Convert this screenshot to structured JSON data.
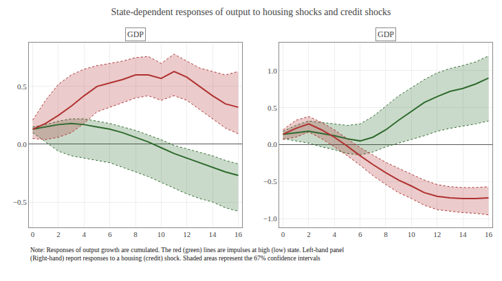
{
  "title": "State-dependent responses of output to housing shocks and credit shocks",
  "annotations": [
    "Note: Responses of output growth are cumulated. The red (green) lines are impulses at high (low) state. Left-hand panel\n(Right-hand) report responses to a housing (credit) shock. Shaded areas represent the 67% confidence intervals"
  ],
  "chart_data": [
    {
      "type": "line",
      "title": "GDP",
      "x": [
        0,
        1,
        2,
        3,
        4,
        5,
        6,
        7,
        8,
        9,
        10,
        11,
        12,
        13,
        14,
        15,
        16
      ],
      "series": [
        {
          "color": "#2d6a2d",
          "values": [
            0.13,
            0.15,
            0.17,
            0.18,
            0.17,
            0.15,
            0.13,
            0.1,
            0.06,
            0.02,
            -0.03,
            -0.08,
            -0.12,
            -0.16,
            -0.2,
            -0.24,
            -0.27
          ],
          "upper": [
            0.15,
            0.17,
            0.2,
            0.22,
            0.22,
            0.2,
            0.18,
            0.15,
            0.12,
            0.08,
            0.04,
            -0.01,
            -0.04,
            -0.07,
            -0.1,
            -0.14,
            -0.17
          ],
          "lower": [
            0.1,
            0.02,
            -0.06,
            -0.1,
            -0.12,
            -0.14,
            -0.16,
            -0.2,
            -0.24,
            -0.28,
            -0.33,
            -0.38,
            -0.43,
            -0.47,
            -0.5,
            -0.55,
            -0.58
          ]
        },
        {
          "color": "#b03030",
          "values": [
            0.13,
            0.18,
            0.25,
            0.33,
            0.42,
            0.5,
            0.53,
            0.56,
            0.6,
            0.6,
            0.57,
            0.63,
            0.58,
            0.5,
            0.42,
            0.35,
            0.32
          ],
          "upper": [
            0.21,
            0.38,
            0.52,
            0.6,
            0.65,
            0.68,
            0.7,
            0.72,
            0.75,
            0.76,
            0.7,
            0.78,
            0.72,
            0.66,
            0.63,
            0.6,
            0.63
          ],
          "lower": [
            0.05,
            0.04,
            0.06,
            0.1,
            0.18,
            0.28,
            0.32,
            0.36,
            0.4,
            0.42,
            0.38,
            0.42,
            0.38,
            0.3,
            0.22,
            0.14,
            0.09
          ]
        }
      ],
      "xlim": [
        -0.3,
        16.3
      ],
      "xticks": [
        0,
        2,
        4,
        6,
        8,
        10,
        12,
        14,
        16
      ],
      "ylim": [
        -0.72,
        0.88
      ],
      "yticks": [
        {
          "value": -0.5,
          "label": "−0.5"
        },
        {
          "value": 0.0,
          "label": "0.0"
        },
        0.5
      ],
      "grid": true
    },
    {
      "type": "line",
      "title": "GDP",
      "x": [
        0,
        1,
        2,
        3,
        4,
        5,
        6,
        7,
        8,
        9,
        10,
        11,
        12,
        13,
        14,
        15,
        16
      ],
      "series": [
        {
          "color": "#2d6a2d",
          "values": [
            0.14,
            0.16,
            0.18,
            0.15,
            0.12,
            0.08,
            0.05,
            0.1,
            0.2,
            0.33,
            0.45,
            0.57,
            0.65,
            0.72,
            0.76,
            0.82,
            0.9
          ],
          "upper": [
            0.18,
            0.26,
            0.32,
            0.3,
            0.28,
            0.26,
            0.28,
            0.38,
            0.52,
            0.66,
            0.77,
            0.88,
            0.97,
            1.03,
            1.07,
            1.12,
            1.2
          ],
          "lower": [
            0.08,
            0.05,
            0.02,
            -0.03,
            -0.07,
            -0.12,
            -0.14,
            -0.1,
            -0.03,
            0.02,
            0.07,
            0.12,
            0.18,
            0.22,
            0.25,
            0.28,
            0.32
          ]
        },
        {
          "color": "#b03030",
          "values": [
            0.14,
            0.22,
            0.28,
            0.2,
            0.1,
            -0.02,
            -0.15,
            -0.27,
            -0.38,
            -0.48,
            -0.56,
            -0.65,
            -0.7,
            -0.72,
            -0.73,
            -0.73,
            -0.72
          ],
          "upper": [
            0.2,
            0.33,
            0.38,
            0.3,
            0.2,
            0.08,
            -0.04,
            -0.14,
            -0.24,
            -0.32,
            -0.4,
            -0.48,
            -0.54,
            -0.57,
            -0.58,
            -0.58,
            -0.57
          ],
          "lower": [
            0.07,
            0.1,
            0.17,
            0.08,
            -0.03,
            -0.15,
            -0.28,
            -0.42,
            -0.54,
            -0.65,
            -0.73,
            -0.82,
            -0.88,
            -0.9,
            -0.92,
            -0.93,
            -0.95
          ]
        }
      ],
      "xlim": [
        -0.3,
        16.3
      ],
      "xticks": [
        0,
        2,
        4,
        6,
        8,
        10,
        12,
        14,
        16
      ],
      "ylim": [
        -1.12,
        1.38
      ],
      "yticks": [
        {
          "value": -1.0,
          "label": "−1.0"
        },
        {
          "value": -0.5,
          "label": "−0.5"
        },
        {
          "value": 0.0,
          "label": "0.0"
        },
        0.5,
        {
          "value": 1.0,
          "label": "1.0"
        }
      ],
      "grid": true
    }
  ]
}
